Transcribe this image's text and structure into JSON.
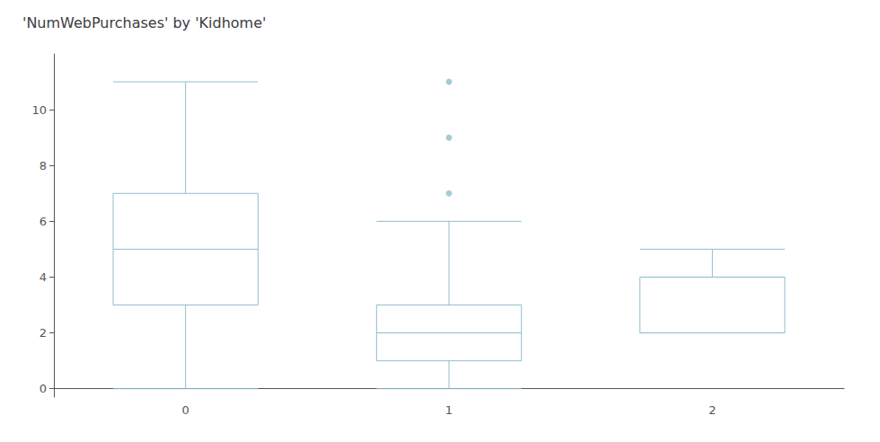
{
  "chart_data": {
    "type": "box",
    "title": "'NumWebPurchases' by 'Kidhome'",
    "categories": [
      "0",
      "1",
      "2"
    ],
    "boxes": [
      {
        "q1": 3.0,
        "median": 5.0,
        "q3": 7.0,
        "whislo": 0.0,
        "whishi": 11.0,
        "fliers": []
      },
      {
        "q1": 1.0,
        "median": 2.0,
        "q3": 3.0,
        "whislo": 0.0,
        "whishi": 6.0,
        "fliers": [
          7.0,
          9.0,
          11.0
        ]
      },
      {
        "q1": 2.0,
        "median": 4.0,
        "q3": 4.0,
        "whislo": 2.0,
        "whishi": 5.0,
        "fliers": []
      }
    ],
    "color": "#8fbfcc",
    "ylim": [
      -0.3,
      12.0
    ],
    "yticks": [
      0,
      2,
      4,
      6,
      8,
      10
    ],
    "grid": false
  }
}
